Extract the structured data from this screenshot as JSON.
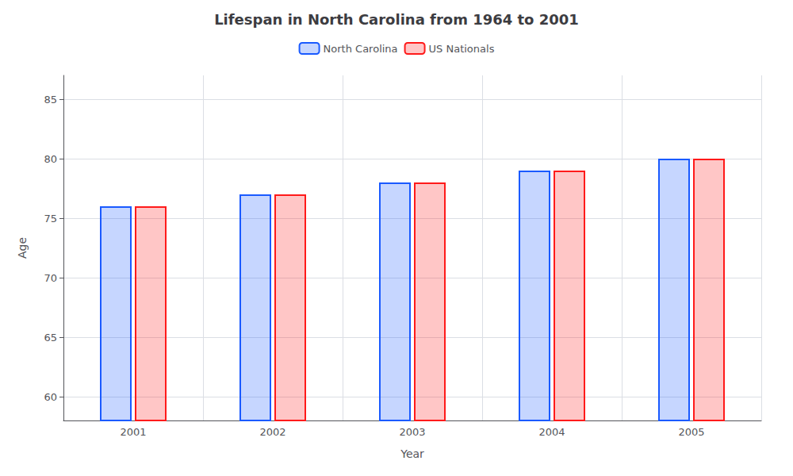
{
  "chart_data": {
    "type": "bar",
    "title": "Lifespan in North Carolina from 1964 to 2001",
    "xlabel": "Year",
    "ylabel": "Age",
    "categories": [
      "2001",
      "2002",
      "2003",
      "2004",
      "2005"
    ],
    "series": [
      {
        "name": "North Carolina",
        "color": "#1a5aff",
        "values": [
          76,
          77,
          78,
          79,
          80
        ]
      },
      {
        "name": "US Nationals",
        "color": "#ff1a1a",
        "values": [
          76,
          77,
          78,
          79,
          80
        ]
      }
    ],
    "ylim": [
      58,
      87
    ],
    "yticks": [
      60,
      65,
      70,
      75,
      80,
      85
    ],
    "grid": true,
    "legend": "top"
  }
}
